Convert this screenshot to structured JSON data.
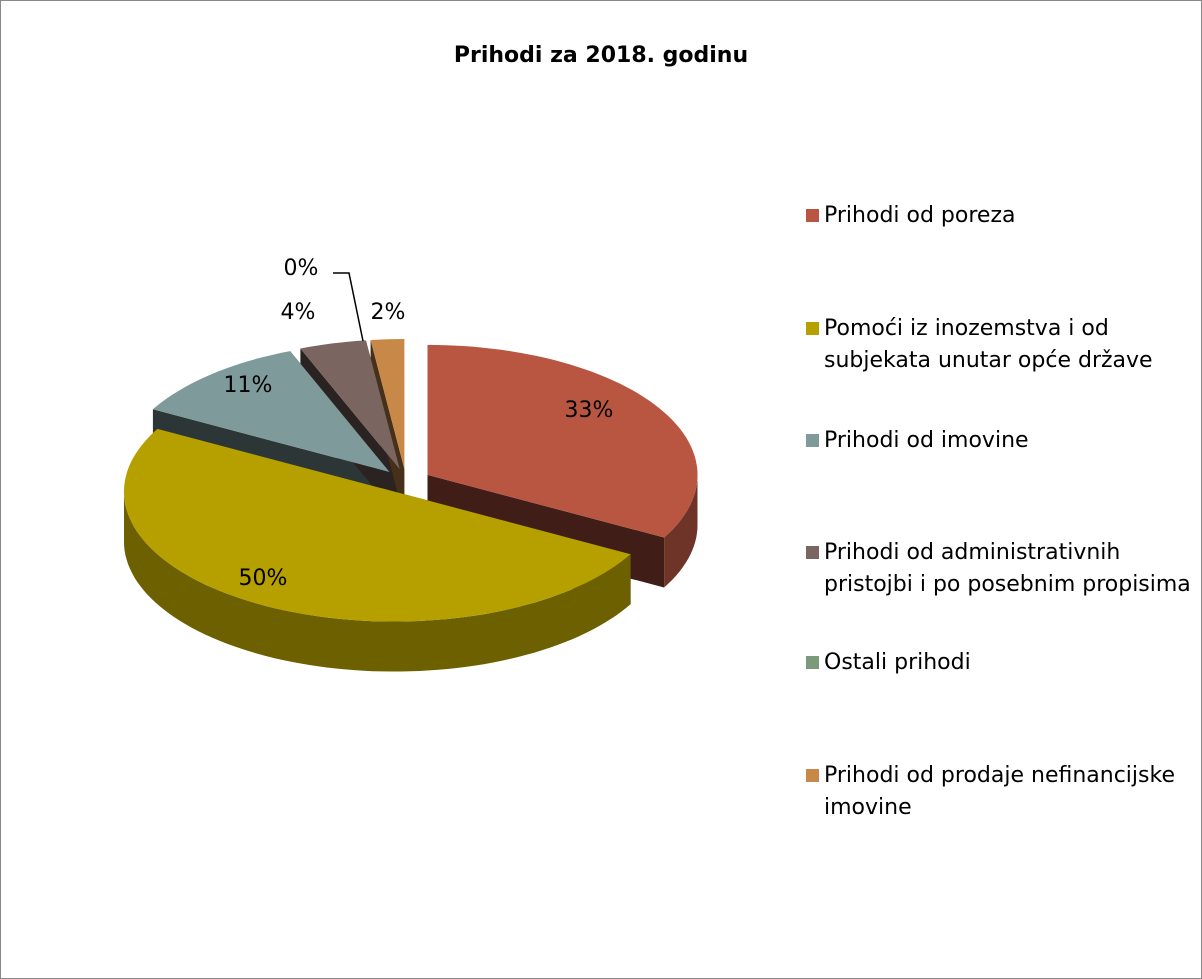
{
  "chart_data": {
    "type": "pie",
    "title": "Prihodi za 2018. godinu",
    "categories": [
      "Prihodi od poreza",
      "Pomoći iz inozemstva i od subjekata unutar opće države",
      "Prihodi od imovine",
      "Prihodi od administrativnih pristojbi i po posebnim propisima",
      "Ostali prihodi",
      "Prihodi od prodaje nefinancijske imovine"
    ],
    "values": [
      33,
      50,
      11,
      4,
      0,
      2
    ],
    "value_labels": [
      "33%",
      "50%",
      "11%",
      "4%",
      "0%",
      "2%"
    ],
    "colors": [
      "#b85642",
      "#b5a000",
      "#7f9a9a",
      "#7a6560",
      "#7a9a7a",
      "#c88848"
    ],
    "legend": "right"
  }
}
